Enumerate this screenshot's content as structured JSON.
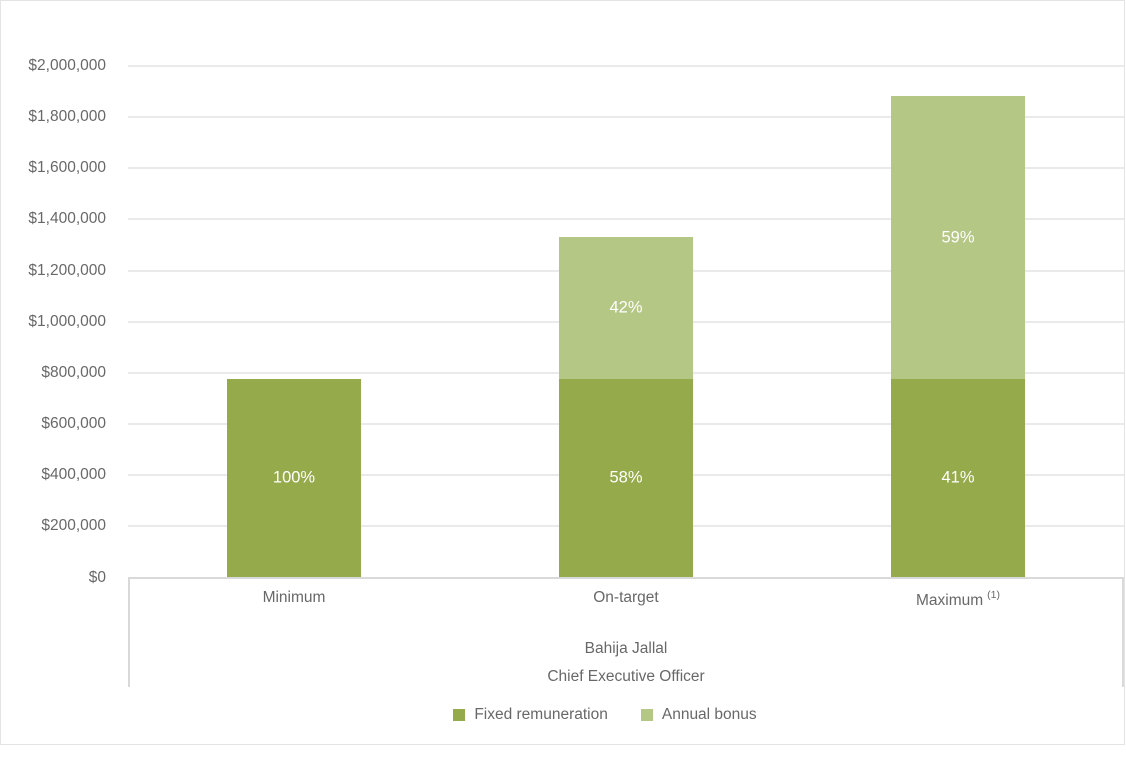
{
  "chart_data": {
    "type": "bar",
    "stacked": true,
    "title": "",
    "categories": [
      "Minimum",
      "On-target",
      "Maximum"
    ],
    "category_superscripts": [
      "",
      "",
      "(1)"
    ],
    "series": [
      {
        "name": "Fixed remuneration",
        "color": "#95AB4B",
        "values": [
          775000,
          775000,
          775000
        ],
        "segment_labels": [
          "100%",
          "58%",
          "41%"
        ]
      },
      {
        "name": "Annual bonus",
        "color": "#B4C785",
        "values": [
          0,
          557000,
          1108000
        ],
        "segment_labels": [
          "",
          "42%",
          "59%"
        ]
      }
    ],
    "axis_title_lines": [
      "Bahija Jallal",
      "Chief Executive Officer"
    ],
    "xlabel": "Bahija Jallal Chief Executive Officer",
    "ylabel": "",
    "ylim": [
      0,
      2000000
    ],
    "ytick_step": 200000,
    "ytick_labels": [
      "$0",
      "$200,000",
      "$400,000",
      "$600,000",
      "$800,000",
      "$1,000,000",
      "$1,200,000",
      "$1,400,000",
      "$1,600,000",
      "$1,800,000",
      "$2,000,000"
    ],
    "grid": true,
    "legend_position": "bottom"
  },
  "style": {
    "background": "#FFFFFF",
    "text_color": "#686868",
    "bar_label_color": "#FFFFFF",
    "grid_color": "#EAEAEA",
    "axis_line_color": "#D9D9D9",
    "frame_color": "#E4E4E4"
  }
}
